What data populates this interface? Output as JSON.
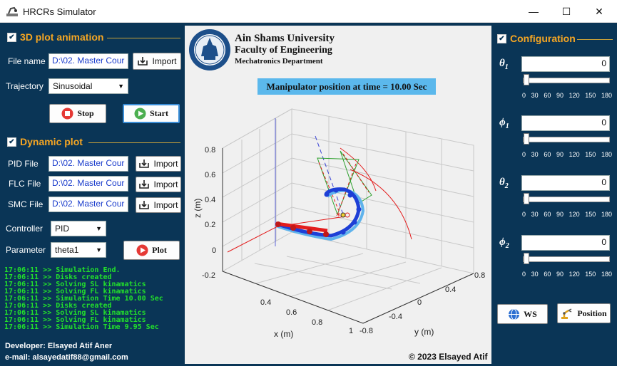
{
  "window": {
    "title": "HRCRs Simulator",
    "minimize": "—",
    "maximize": "☐",
    "close": "✕"
  },
  "anim": {
    "section_title": "3D plot animation",
    "file_label": "File name",
    "file_value": "D:\\02. Master Cour",
    "import_label": "Import",
    "trajectory_label": "Trajectory",
    "trajectory_value": "Sinusoidal",
    "stop_label": "Stop",
    "start_label": "Start"
  },
  "dyn": {
    "section_title": "Dynamic plot",
    "pid_label": "PID File",
    "pid_value": "D:\\02. Master Cour",
    "flc_label": "FLC File",
    "flc_value": "D:\\02. Master Cour",
    "smc_label": "SMC File",
    "smc_value": "D:\\02. Master Cour",
    "import_label": "Import",
    "controller_label": "Controller",
    "controller_value": "PID",
    "parameter_label": "Parameter",
    "parameter_value": "theta1",
    "plot_label": "Plot"
  },
  "log": [
    "17:06:11 >> Simulation End.",
    "17:06:11 >> Disks created",
    "17:06:11 >> Solving SL kinamatics",
    "17:06:11 >> Solving FL kinamatics",
    "17:06:11 >> Simulation Time 10.00 Sec",
    "17:06:11 >> Disks created",
    "17:06:11 >> Solving SL kinamatics",
    "17:06:11 >> Solving FL kinamatics",
    "17:06:11 >> Simulation Time 9.95 Sec"
  ],
  "footer": {
    "developer": "Developer: Elsayed Atif Aner",
    "email": "e-mail: alsayedatif88@gmail.com",
    "copyright": "© 2023 Elsayed Atif"
  },
  "header": {
    "university": "Ain Shams University",
    "faculty": "Faculty of Engineering",
    "dept": "Mechatronics Department",
    "status": "Manipulator position at time = 10.00 Sec"
  },
  "plot": {
    "zlabel": "z (m)",
    "xlabel": "x (m)",
    "ylabel": "y (m)",
    "zticks": [
      "0.8",
      "0.6",
      "0.4",
      "0.2",
      "0",
      "-0.2"
    ],
    "xticks": [
      "0.4",
      "0.6",
      "0.8",
      "1"
    ],
    "yticks": [
      "-0.8",
      "-0.4",
      "0",
      "0.4",
      "0.8"
    ]
  },
  "config": {
    "section_title": "Configuration",
    "params": [
      {
        "label": "θ1",
        "sym": "θ",
        "sub": "1",
        "value": "0"
      },
      {
        "label": "ϕ1",
        "sym": "ϕ",
        "sub": "1",
        "value": "0"
      },
      {
        "label": "θ2",
        "sym": "θ",
        "sub": "2",
        "value": "0"
      },
      {
        "label": "ϕ2",
        "sym": "ϕ",
        "sub": "2",
        "value": "0"
      }
    ],
    "tick_labels": [
      "0",
      "30",
      "60",
      "90",
      "120",
      "150",
      "180"
    ],
    "ws_label": "WS",
    "position_label": "Position"
  },
  "colors": {
    "accent": "#f6a623",
    "bg": "#0a3556",
    "log": "#22e02b",
    "status_bg": "#5bb8ec"
  }
}
